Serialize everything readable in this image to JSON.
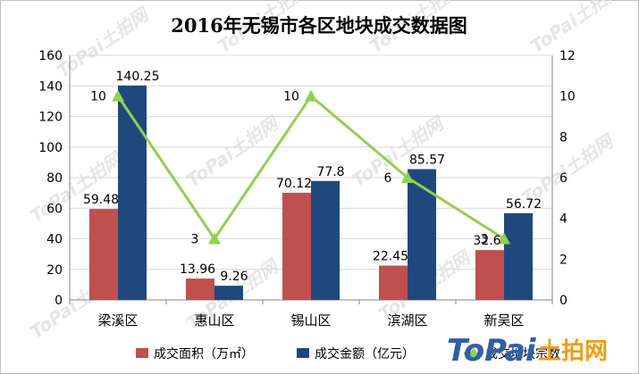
{
  "chart_data": {
    "type": "bar",
    "title": "2016年无锡市各区地块成交数据图",
    "categories": [
      "梁溪区",
      "惠山区",
      "锡山区",
      "滨湖区",
      "新吴区"
    ],
    "series": [
      {
        "name": "成交面积（万㎡）",
        "type": "bar",
        "axis": "left",
        "color": "#c0504d",
        "values": [
          59.48,
          13.96,
          70.12,
          22.45,
          32.6
        ],
        "labels": [
          "59.48",
          "13.96",
          "70.12",
          "22.45",
          "32.6"
        ]
      },
      {
        "name": "成交金额（亿元）",
        "type": "bar",
        "axis": "left",
        "color": "#1f497d",
        "values": [
          140.25,
          9.26,
          77.8,
          85.57,
          56.72
        ],
        "labels": [
          "140.25",
          "9.26",
          "77.8",
          "85.57",
          "56.72"
        ]
      },
      {
        "name": "成交地块宗数",
        "type": "line",
        "axis": "right",
        "color": "#92d050",
        "values": [
          10,
          3,
          10,
          6,
          3
        ],
        "labels": [
          "10",
          "3",
          "10",
          "6",
          "3"
        ]
      }
    ],
    "y_left": {
      "min": 0,
      "max": 160,
      "ticks": [
        "0",
        "20",
        "40",
        "60",
        "80",
        "100",
        "120",
        "140",
        "160"
      ]
    },
    "y_right": {
      "min": 0,
      "max": 12,
      "ticks": [
        "0",
        "2",
        "4",
        "6",
        "8",
        "10",
        "12"
      ]
    },
    "grid": true,
    "legend": "bottom"
  },
  "watermark": {
    "brand": "ToPai",
    "cn": "土拍网"
  }
}
